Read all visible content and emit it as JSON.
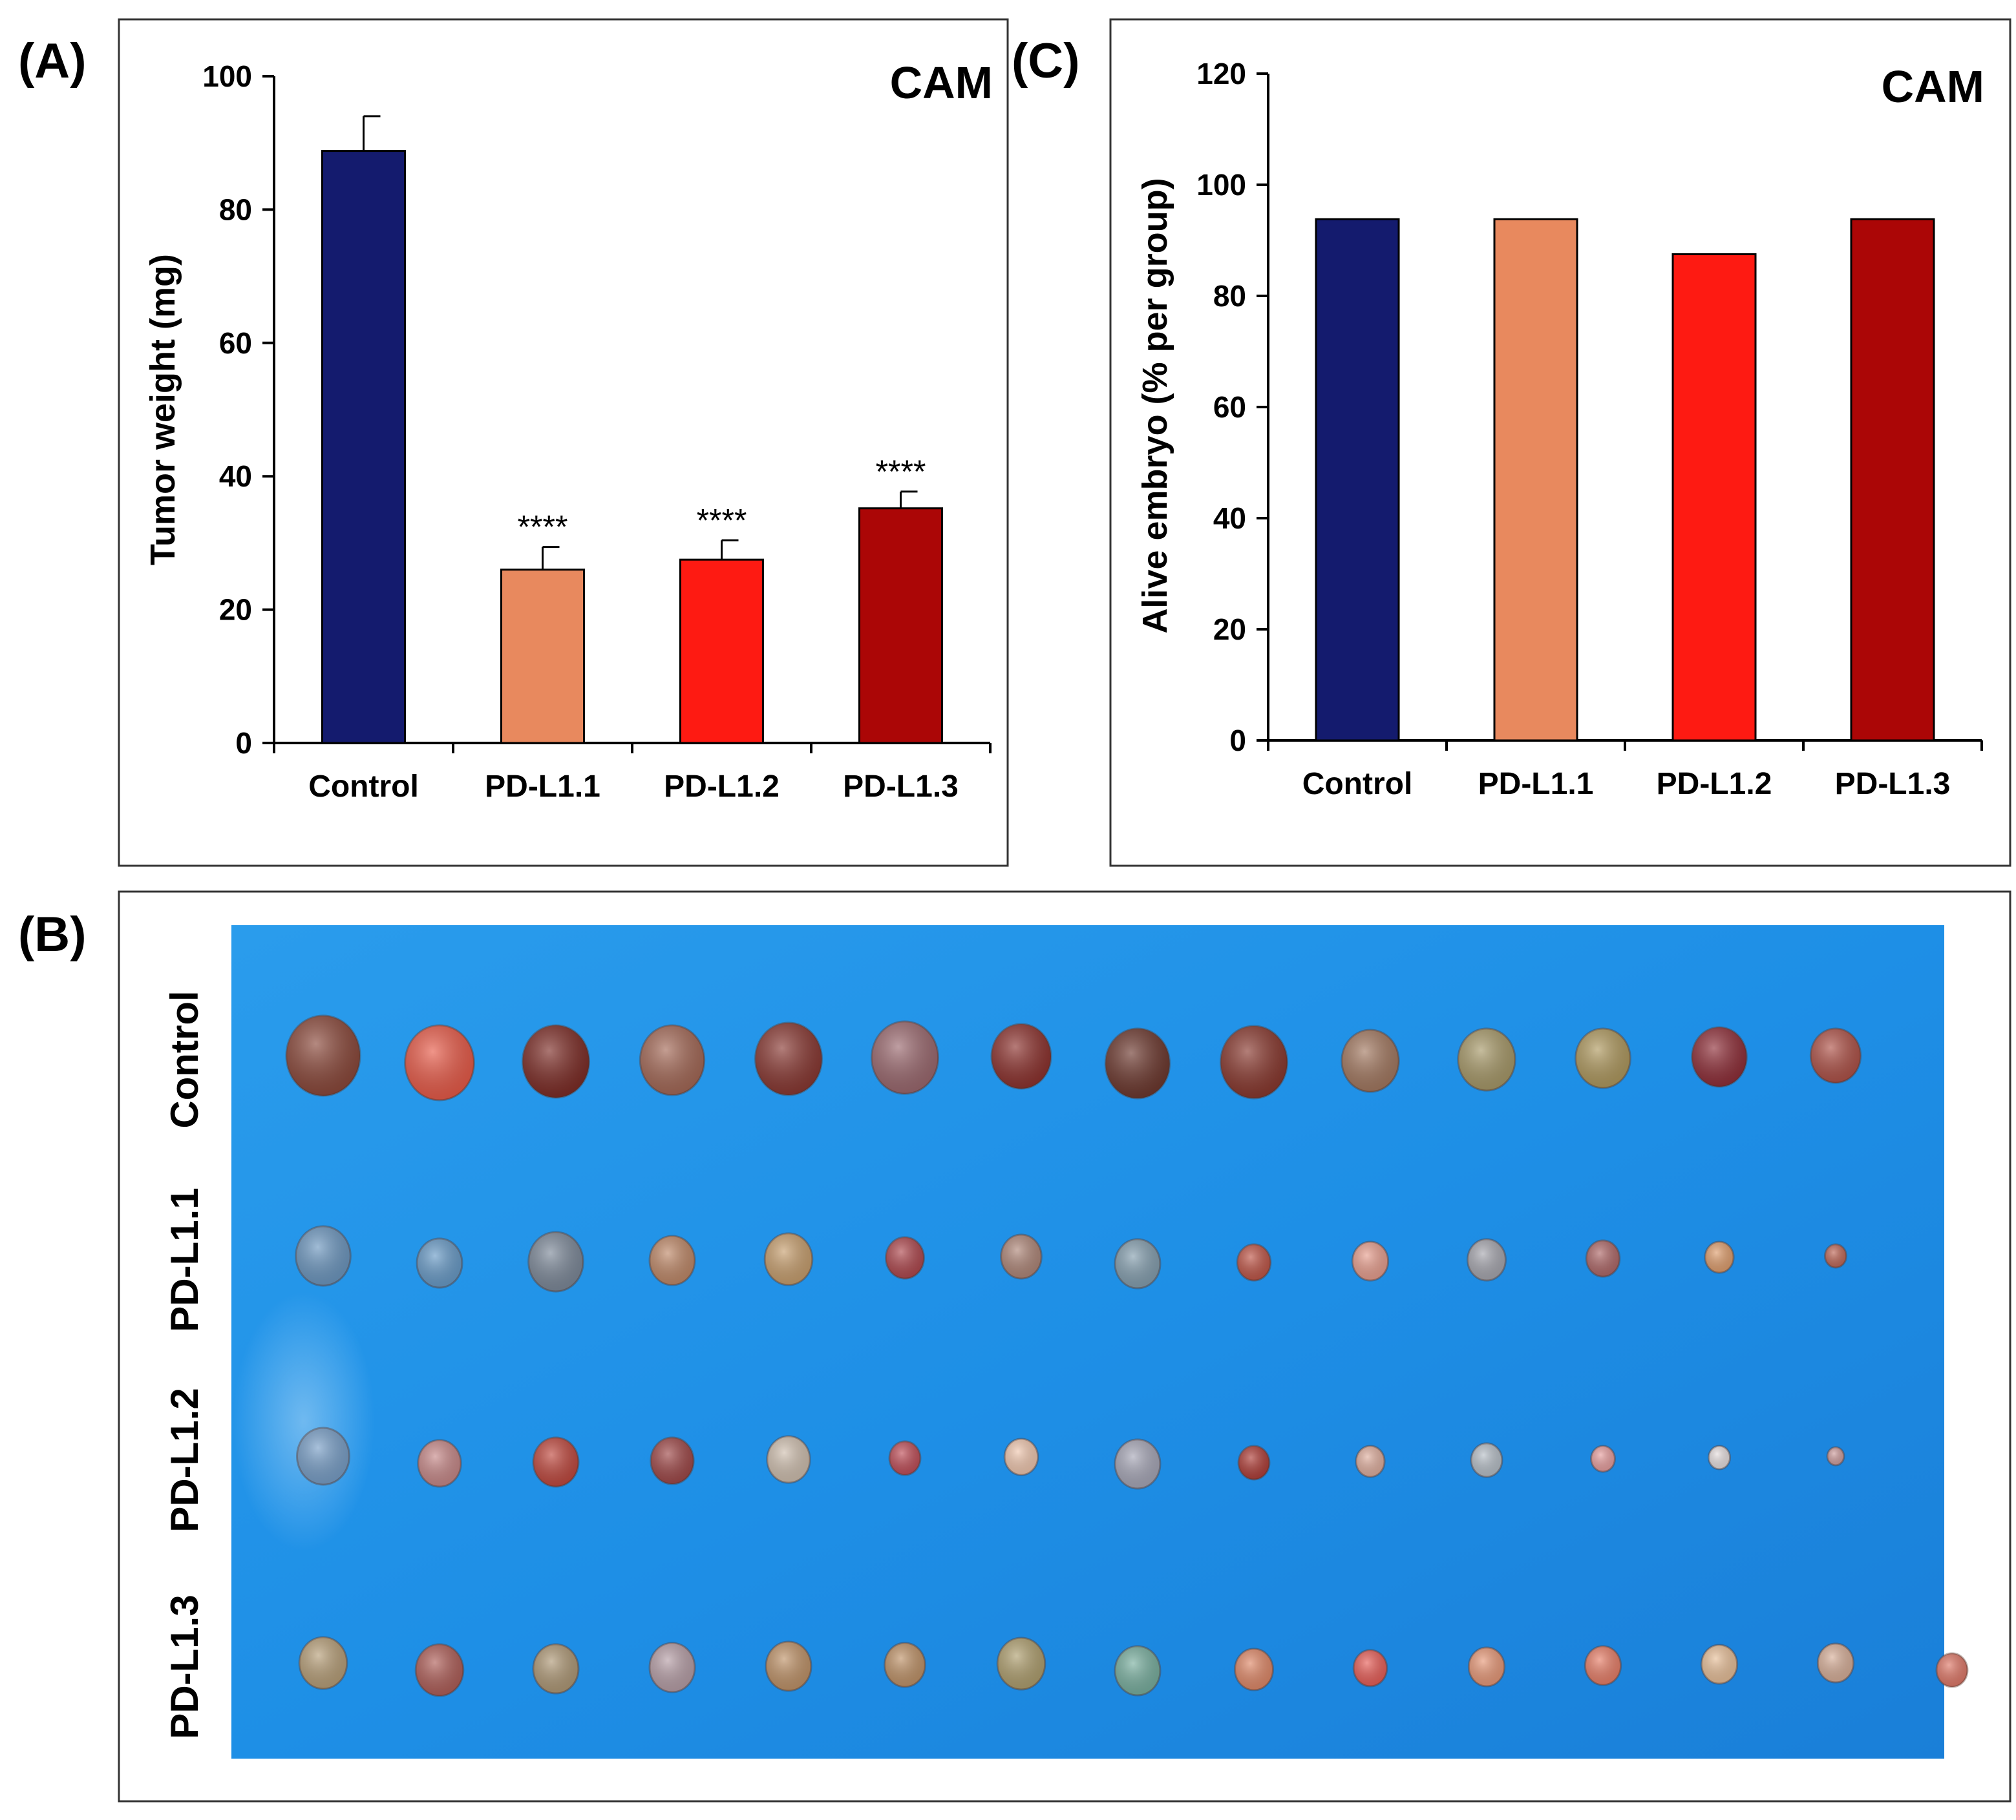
{
  "panels": {
    "A": {
      "letter": "(A)",
      "tag": "CAM"
    },
    "B": {
      "letter": "(B)"
    },
    "C": {
      "letter": "(C)",
      "tag": "CAM"
    }
  },
  "chart_data": [
    {
      "id": "A",
      "type": "bar",
      "title": "CAM",
      "categories": [
        "Control",
        "PD-L1.1",
        "PD-L1.2",
        "PD-L1.3"
      ],
      "values": [
        88.8,
        26.0,
        27.5,
        35.2
      ],
      "errors": [
        5.2,
        3.4,
        2.9,
        2.5
      ],
      "significance": [
        "",
        "****",
        "****",
        "****"
      ],
      "colors": [
        "#141b6e",
        "#e8895e",
        "#fe1a12",
        "#ab0606"
      ],
      "xlabel": "",
      "ylabel": "Tumor weight (mg)",
      "ylim": [
        0,
        100
      ],
      "yticks": [
        0,
        20,
        40,
        60,
        80,
        100
      ],
      "grid": false
    },
    {
      "id": "C",
      "type": "bar",
      "title": "CAM",
      "categories": [
        "Control",
        "PD-L1.1",
        "PD-L1.2",
        "PD-L1.3"
      ],
      "values": [
        93.8,
        93.8,
        87.5,
        93.8
      ],
      "colors": [
        "#141b6e",
        "#e8895e",
        "#fe1a12",
        "#ab0606"
      ],
      "xlabel": "",
      "ylabel": "Alive embryo (% per group)",
      "ylim": [
        0,
        120
      ],
      "yticks": [
        0,
        20,
        40,
        60,
        80,
        100,
        120
      ],
      "grid": false
    }
  ],
  "photo": {
    "rows": [
      {
        "label": "Control",
        "count": 14
      },
      {
        "label": "PD-L1.1",
        "count": 14
      },
      {
        "label": "PD-L1.2",
        "count": 14
      },
      {
        "label": "PD-L1.3",
        "count": 15
      }
    ],
    "background_color": "#1f8ee3"
  }
}
